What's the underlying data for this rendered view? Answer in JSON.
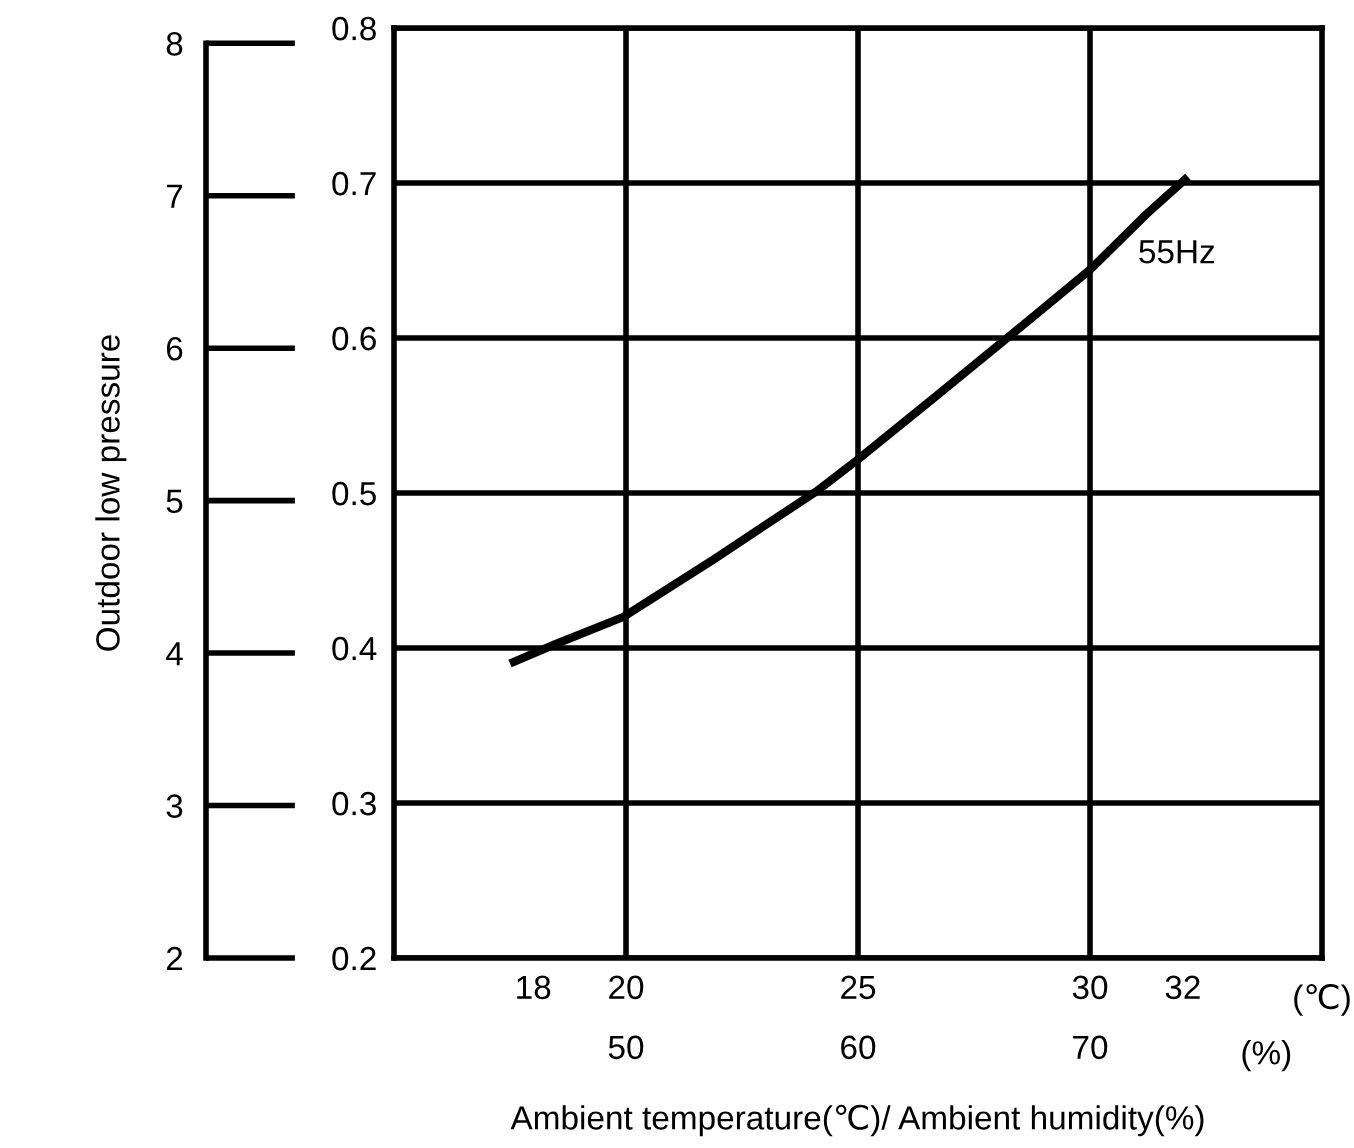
{
  "chart_data": {
    "type": "line",
    "xlabel": "Ambient temperature(℃)/ Ambient humidity(%)",
    "y2label": "Outdoor low pressure",
    "x": [
      17.5,
      18.44,
      19.94,
      21.88,
      24.1,
      24.97,
      26.62,
      28.34,
      30.0,
      31.22,
      32.11
    ],
    "series": [
      {
        "name": "55Hz",
        "color": "#000000",
        "values": [
          0.39,
          0.402,
          0.42,
          0.457,
          0.501,
          0.521,
          0.561,
          0.603,
          0.644,
          0.68,
          0.704
        ]
      }
    ],
    "xlim": [
      15,
      35
    ],
    "xticks": [
      18,
      20,
      25,
      30,
      32
    ],
    "x2lim": [
      40,
      80
    ],
    "x2ticks": [
      50,
      60,
      70
    ],
    "ylim": [
      0.2,
      0.8
    ],
    "yticks": [
      0.2,
      0.3,
      0.4,
      0.5,
      0.6,
      0.7,
      0.8
    ],
    "y2lim": [
      2,
      8.1
    ],
    "y2ticks": [
      2,
      3,
      4,
      5,
      6,
      7,
      8
    ],
    "annotations": [
      "(℃)",
      "(%)"
    ],
    "grid": true,
    "marker": "none",
    "line_style": "solid"
  }
}
